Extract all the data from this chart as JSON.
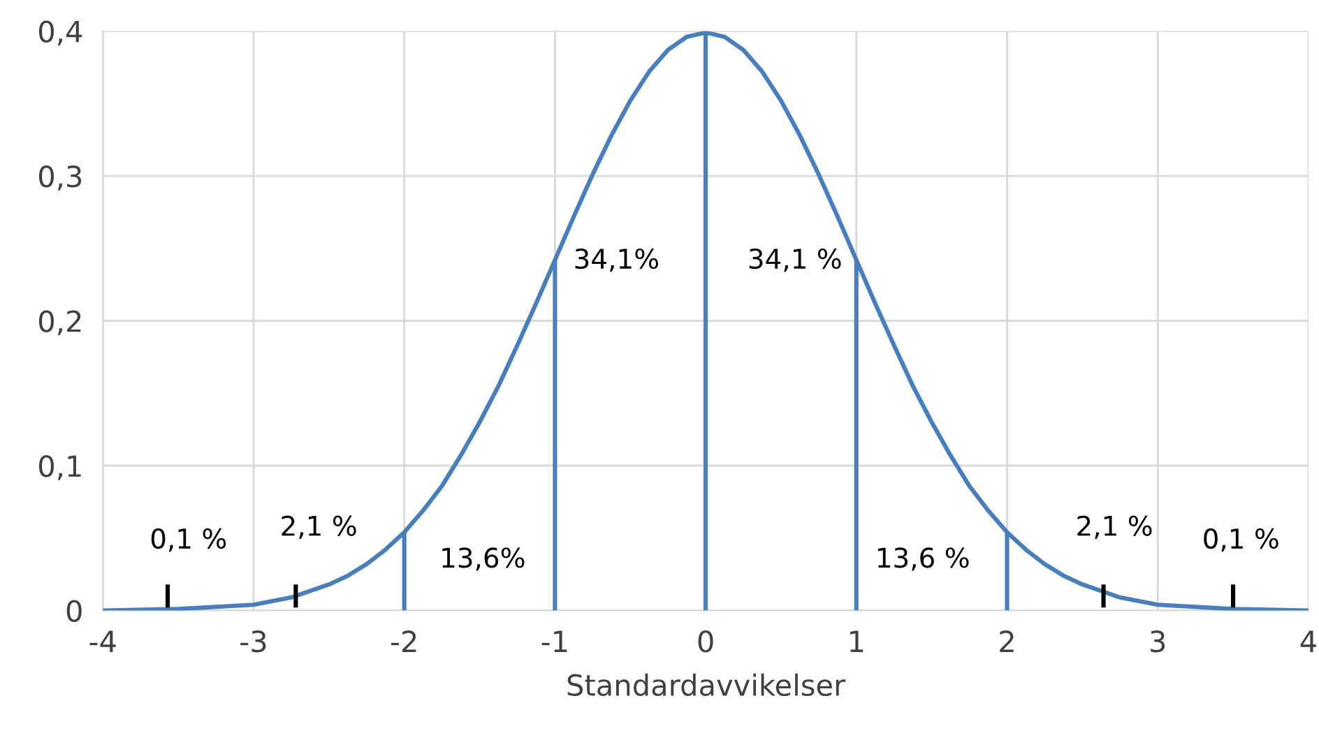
{
  "chart_data": {
    "type": "line",
    "xlabel": "Standardavvikelser",
    "xlim": [
      -4,
      4
    ],
    "xticks": [
      -4,
      -3,
      -2,
      -1,
      0,
      1,
      2,
      3,
      4
    ],
    "ylim": [
      0,
      0.4
    ],
    "yticks": [
      {
        "value": 0,
        "label": "0"
      },
      {
        "value": 0.1,
        "label": "0,1"
      },
      {
        "value": 0.2,
        "label": "0,2"
      },
      {
        "value": 0.3,
        "label": "0,3"
      },
      {
        "value": 0.4,
        "label": "0,4"
      }
    ],
    "grid": true,
    "marker": "none",
    "line_style": "solid",
    "series": [
      {
        "color": "#4a7ebb",
        "x": [
          -4,
          -3.5,
          -3,
          -2.75,
          -2.5,
          -2.375,
          -2.25,
          -2.125,
          -2,
          -1.875,
          -1.75,
          -1.625,
          -1.5,
          -1.375,
          -1.25,
          -1.125,
          -1,
          -0.875,
          -0.75,
          -0.625,
          -0.5,
          -0.375,
          -0.25,
          -0.125,
          0,
          0.125,
          0.25,
          0.375,
          0.5,
          0.625,
          0.75,
          0.875,
          1,
          1.125,
          1.25,
          1.375,
          1.5,
          1.625,
          1.75,
          1.875,
          2,
          2.125,
          2.25,
          2.375,
          2.5,
          2.75,
          3,
          3.5,
          4
        ],
        "values": [
          0,
          0.001,
          0.004,
          0.009,
          0.018,
          0.024,
          0.032,
          0.042,
          0.054,
          0.069,
          0.086,
          0.107,
          0.13,
          0.155,
          0.183,
          0.212,
          0.242,
          0.272,
          0.301,
          0.328,
          0.352,
          0.372,
          0.387,
          0.396,
          0.399,
          0.396,
          0.387,
          0.372,
          0.352,
          0.328,
          0.301,
          0.272,
          0.242,
          0.212,
          0.183,
          0.155,
          0.13,
          0.107,
          0.086,
          0.069,
          0.054,
          0.042,
          0.032,
          0.024,
          0.018,
          0.009,
          0.004,
          0.001,
          0
        ]
      },
      {
        "color": "#4a7ebb",
        "x": [
          -2,
          -2
        ],
        "values": [
          0,
          0.054
        ]
      },
      {
        "color": "#4a7ebb",
        "x": [
          -1,
          -1
        ],
        "values": [
          0,
          0.242
        ]
      },
      {
        "color": "#4a7ebb",
        "x": [
          0,
          0
        ],
        "values": [
          0,
          0.399
        ]
      },
      {
        "color": "#4a7ebb",
        "x": [
          1,
          1
        ],
        "values": [
          0,
          0.242
        ]
      },
      {
        "color": "#4a7ebb",
        "x": [
          2,
          2
        ],
        "values": [
          0,
          0.054
        ]
      },
      {
        "color": "#000000",
        "x": [
          -3.57,
          -3.57
        ],
        "values": [
          0.002,
          0.018
        ]
      },
      {
        "color": "#000000",
        "x": [
          -2.72,
          -2.72
        ],
        "values": [
          0.002,
          0.018
        ]
      },
      {
        "color": "#000000",
        "x": [
          2.64,
          2.64
        ],
        "values": [
          0.002,
          0.018
        ]
      },
      {
        "color": "#000000",
        "x": [
          3.5,
          3.5
        ],
        "values": [
          0.002,
          0.018
        ]
      }
    ],
    "annotations": [
      "0,1 %",
      "2,1 %",
      "13,6%",
      "34,1%",
      "34,1 %",
      "13,6 %",
      "2,1 %",
      "0,1 %"
    ]
  }
}
